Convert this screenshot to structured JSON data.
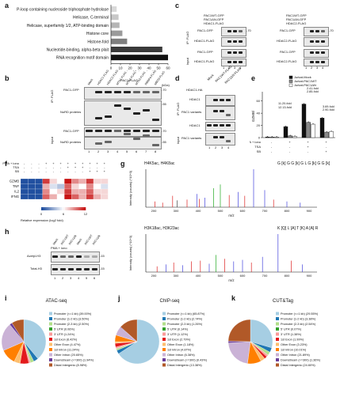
{
  "panels": {
    "a": {
      "label": "a",
      "xaxis": "-log10 (p value)",
      "ticks": [
        "0",
        "10",
        "20",
        "30",
        "40",
        "50",
        "60"
      ],
      "chart_data": {
        "type": "bar",
        "orientation": "horizontal",
        "categories": [
          "P-loop containing nucleoside triphosphate hydrolase",
          "Helicase, C-terminal",
          "Helicase, superfamily 1/2, ATP-binding domain",
          "Histone core",
          "Histone-fold",
          "Nucleotide-binding, alpha-beta plait",
          "RNA recognition motif domain"
        ],
        "values": [
          6,
          8,
          9,
          12,
          17,
          54,
          62
        ],
        "xlim": [
          0,
          60
        ],
        "colors": [
          "#d9d9d9",
          "#c8c8c8",
          "#b5b5b5",
          "#9a9a9a",
          "#7f7f7f",
          "#3a3a3a",
          "#111111"
        ]
      }
    },
    "b": {
      "label": "b",
      "flag_header": "PAC1-FLAG",
      "lanes_top": [
        "Mock",
        "HDAC1-FLAG",
        "HDAC2-FLAG",
        "MTA1-FLAG",
        "MTA2-FLAG",
        "MTA3-FLAG",
        "RBBP4-FLAG",
        "MBD3-FLAG"
      ],
      "rows": [
        {
          "name": "PAC1-GFP",
          "kda": "-70"
        },
        {
          "name": "NuRD proteins",
          "kda": "-55"
        },
        {
          "name": "PAC1-GFP",
          "kda": "-70"
        },
        {
          "name": "NuRD proteins",
          "kda": "-55"
        }
      ],
      "side": [
        "IP: FLAG",
        "Input"
      ],
      "lane_numbers": [
        "1",
        "2",
        "3",
        "4",
        "5",
        "6",
        "7",
        "8"
      ],
      "kda_label": "(kDa)"
    },
    "c": {
      "label": "c",
      "left_header": [
        "PAC1WT-GFP",
        "PAC1ΔN-GFP",
        "HDAC1-FLAG"
      ],
      "right_header": [
        "PAC1WT-GFP",
        "PAC1ΔN-GFP",
        "HDAC2-FLAG"
      ],
      "left_rows": [
        "PAC1-GFP",
        "HDAC1-FLAG",
        "PAC1-GFP",
        "HDAC1-FLAG"
      ],
      "right_rows": [
        "PAC1-GFP",
        "HDAC2-FLAG",
        "PAC1-GFP",
        "HDAC2-FLAG"
      ],
      "side": [
        "IP: FLAG",
        "Input"
      ],
      "lane_numbers": [
        "1",
        "2",
        "3",
        "4"
      ],
      "kda": "-70"
    },
    "d": {
      "label": "d",
      "lanes": [
        "Mock",
        "PAC1WT-FLAG",
        "PAC1ΔN-FLAG"
      ],
      "top_label": "HDAC1-HA",
      "rows": [
        "HDAC1",
        "PAC1 variants",
        "HDAC1",
        "PAC1 variants"
      ],
      "side": [
        "IP: FLAG",
        "Input"
      ],
      "lane_numbers": [
        "1",
        "2",
        "3",
        "4"
      ]
    },
    "e": {
      "label": "e",
      "ylabel": "GZMB/",
      "legend": [
        "Jurkat-Mock",
        "Jurkat-PAC1WT",
        "Jurkat-PAC1ΔN"
      ],
      "annotations": [
        "11.20-fold",
        "12.13-fold",
        "2.41-fold",
        "2.85-fold",
        "3.69-fold",
        "2.90-fold"
      ],
      "conditions": [
        "PMA + iono",
        "TSA",
        "SB"
      ],
      "chart_data": {
        "type": "bar",
        "categories": [
          "ctrl",
          "PMA+iono",
          "PMA+iono+TSA",
          "PMA+iono+SB"
        ],
        "series": [
          {
            "name": "Jurkat-Mock",
            "values": [
              1,
              18,
              55,
              32
            ]
          },
          {
            "name": "Jurkat-PAC1WT",
            "values": [
              1,
              3,
              25,
              9
            ]
          },
          {
            "name": "Jurkat-PAC1ΔN",
            "values": [
              1,
              2,
              22,
              10
            ]
          }
        ],
        "ylim": [
          0,
          70
        ],
        "colors": [
          "#111111",
          "#888888",
          "#ffffff"
        ]
      }
    },
    "f": {
      "label": "f",
      "conditions": [
        "PMA + iono",
        "TSA",
        "SB"
      ],
      "genes": [
        "GZMB",
        "TNF",
        "IL2",
        "IFNG"
      ],
      "colorbar_label": "Relative expression (log2 fold)",
      "colorbar_ticks": [
        "0",
        "6",
        "12"
      ],
      "chart_data": {
        "type": "heatmap",
        "rows": [
          "GZMB",
          "TNF",
          "IL2",
          "IFNG"
        ],
        "values": [
          [
            0,
            0,
            0,
            11,
            7,
            6,
            12,
            9,
            8,
            11,
            7,
            7
          ],
          [
            0,
            0,
            0,
            8,
            5,
            4,
            10,
            7,
            6,
            9,
            6,
            5
          ],
          [
            0,
            0,
            0,
            9,
            6,
            7,
            11,
            8,
            8,
            10,
            7,
            7
          ],
          [
            0,
            0,
            0,
            10,
            8,
            6,
            12,
            10,
            8,
            11,
            8,
            7
          ]
        ]
      }
    },
    "g": {
      "label": "g",
      "spec1_title": "H4K5ac, H4K8ac",
      "spec2_title": "H3K18ac, H3K23ac",
      "seq1": "G [k] G G [k] G L G [k] G G [k]",
      "seq2": "K [Q] L [A] T [K] A [A] R",
      "ylabel": "Intensity (counts) (*10^3)",
      "xlabel": "m/z",
      "xticks": [
        "200",
        "300",
        "400",
        "500",
        "600",
        "700",
        "800",
        "900"
      ]
    },
    "h": {
      "label": "h",
      "lanes": [
        "Mock",
        "PAC1WT",
        "PAC1ΔN",
        "Mock",
        "PAC1WT",
        "PAC1ΔN"
      ],
      "rows": [
        {
          "name": "Acetyl-H3",
          "kda": "-15"
        },
        {
          "name": "Total-H3",
          "kda": "-15"
        }
      ],
      "treatment": "PMA + iono",
      "lane_numbers": [
        "1",
        "2",
        "3",
        "4",
        "5",
        "6"
      ]
    },
    "i": {
      "label": "i",
      "title": "ATAC-seq",
      "chart_data": {
        "type": "pie",
        "labels": [
          "Promoter (<=1 kb) (39.00%)",
          "Promoter (1-2 kb) (3.50%)",
          "Promoter (2-3 kb) (2.50%)",
          "5' UTR (0.06%)",
          "3' UTR (1.24%)",
          "1st Exon (6.42%)",
          "Other Exon (4.47%)",
          "1st Intron (11.24%)",
          "Other Intron (20.65%)",
          "Downstream (<=300) (1.94%)",
          "Distal Intergenic (8.98%)"
        ],
        "values": [
          39.0,
          3.5,
          2.5,
          0.06,
          1.24,
          6.42,
          4.47,
          11.24,
          20.65,
          1.94,
          8.98
        ],
        "colors": [
          "#a6cee3",
          "#1f78b4",
          "#b2df8a",
          "#33a02c",
          "#fb9a99",
          "#e31a1c",
          "#fdbf6f",
          "#ff7f00",
          "#cab2d6",
          "#6a3d9a",
          "#b15928"
        ]
      }
    },
    "j": {
      "label": "j",
      "title": "ChIP-seq",
      "chart_data": {
        "type": "pie",
        "labels": [
          "Promoter (<=1 kb) (65.87%)",
          "Promoter (1-2 kb) (2.74%)",
          "Promoter (2-3 kb) (1.26%)",
          "5' UTR (0.14%)",
          "3' UTR (1.12%)",
          "1st Exon (2.79%)",
          "Other Exon (1.18%)",
          "1st Intron (4.87%)",
          "Other Intron (6.38%)",
          "Downstream (<=300) (0.43%)",
          "Distal Intergenic (13.38%)"
        ],
        "values": [
          65.87,
          2.74,
          1.26,
          0.14,
          1.12,
          2.79,
          1.18,
          4.87,
          6.38,
          0.43,
          13.38
        ],
        "colors": [
          "#a6cee3",
          "#1f78b4",
          "#b2df8a",
          "#33a02c",
          "#fb9a99",
          "#e31a1c",
          "#fdbf6f",
          "#ff7f00",
          "#cab2d6",
          "#6a3d9a",
          "#b15928"
        ]
      }
    },
    "k": {
      "label": "k",
      "title": "CUT&Tag",
      "chart_data": {
        "type": "pie",
        "labels": [
          "Promoter (<=1 kb) (29.55%)",
          "Promoter (1-2 kb) (3.38%)",
          "Promoter (2-3 kb) (2.54%)",
          "5' UTR (0.07%)",
          "3' UTR (1.38%)",
          "1st Exon (1.99%)",
          "Other Exon (3.23%)",
          "1st Intron (10.01%)",
          "Other Intron (21.89%)",
          "Downstream (<=300) (1.36%)",
          "Distal Intergenic (24.60%)"
        ],
        "values": [
          29.55,
          3.38,
          2.54,
          0.07,
          1.38,
          1.99,
          3.23,
          10.01,
          21.89,
          1.36,
          24.6
        ],
        "colors": [
          "#a6cee3",
          "#1f78b4",
          "#b2df8a",
          "#33a02c",
          "#fb9a99",
          "#e31a1c",
          "#fdbf6f",
          "#ff7f00",
          "#cab2d6",
          "#6a3d9a",
          "#b15928"
        ]
      }
    }
  }
}
